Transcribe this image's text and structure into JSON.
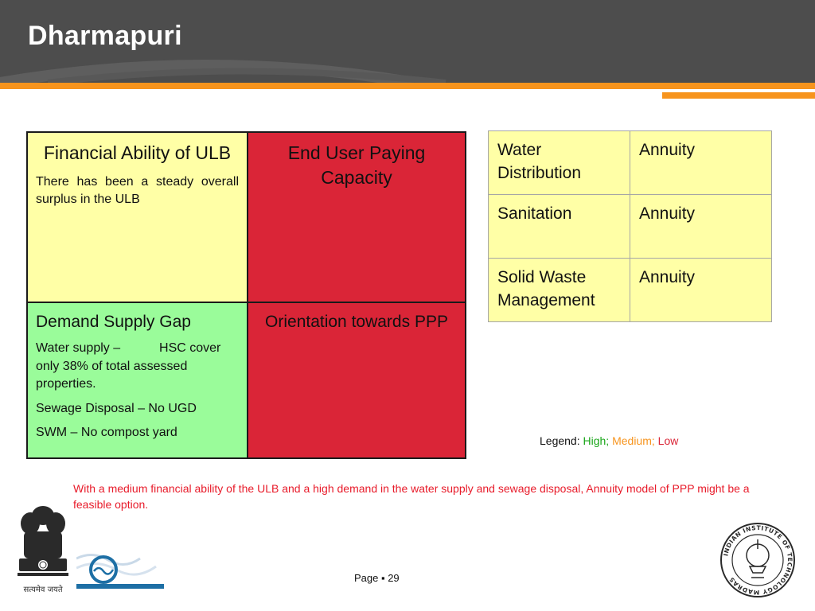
{
  "slide": {
    "title": "Dharmapuri"
  },
  "matrix": {
    "financial": {
      "heading": "Financial Ability of ULB",
      "body": "There has been a steady overall surplus in the ULB",
      "rating_color": "#ffffa6"
    },
    "paying_capacity": {
      "heading": "End User Paying Capacity",
      "rating_color": "#da2537"
    },
    "demand_gap": {
      "heading": "Demand Supply Gap",
      "lines": [
        "Water supply –           HSC cover only 38% of total assessed properties.",
        "Sewage Disposal – No UGD",
        "SWM – No compost yard"
      ],
      "rating_color": "#9afc9a"
    },
    "ppp_orientation": {
      "heading": "Orientation towards PPP",
      "rating_color": "#da2537"
    }
  },
  "ppp_table": {
    "rows": [
      {
        "sector": "Water Distribution",
        "model": "Annuity"
      },
      {
        "sector": "Sanitation",
        "model": "Annuity"
      },
      {
        "sector": "Solid Waste Management",
        "model": "Annuity"
      }
    ]
  },
  "legend": {
    "label": "Legend:",
    "high": "High;",
    "medium": "Medium;",
    "low": "Low",
    "colors": {
      "high": "#1aa61a",
      "medium": "#f7941d",
      "low": "#da2537"
    }
  },
  "conclusion": "With a medium financial ability of the ULB and a high demand in the water supply and sewage disposal, Annuity model of PPP might be a feasible option.",
  "footer": {
    "page_label": "Page ▪ 29",
    "emblem_caption": "सत्यमेव जयते",
    "iit_logo_text": "INDIAN INSTITUTE OF TECHNOLOGY MADRAS"
  },
  "icons": [
    "national-emblem-icon",
    "wave-logo-icon",
    "iit-madras-logo-icon"
  ]
}
